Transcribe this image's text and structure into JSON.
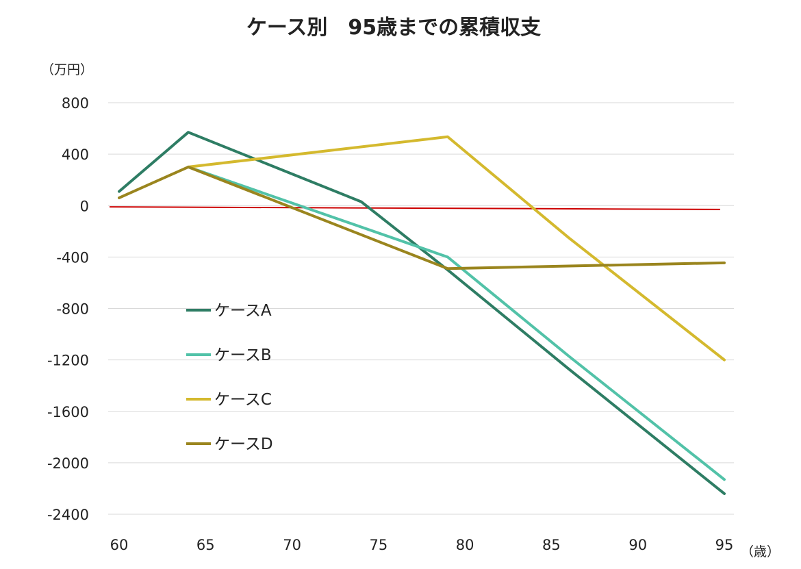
{
  "chart_data": {
    "type": "line",
    "title": "ケース別　95歳までの累積収支",
    "ylabel": "（万円）",
    "xlabel": "（歳）",
    "x": [
      60,
      64,
      74,
      79,
      86,
      95
    ],
    "xticks": [
      60,
      65,
      70,
      75,
      80,
      85,
      90,
      95
    ],
    "yticks": [
      800,
      400,
      0,
      -400,
      -800,
      -1200,
      -1600,
      -2000,
      -2400
    ],
    "ylim": [
      -2400,
      800
    ],
    "xlim": [
      60,
      95
    ],
    "grid": true,
    "legend": "left",
    "reference_line": {
      "x": [
        60,
        95
      ],
      "y": [
        -10,
        -30
      ],
      "color": "#cc0000"
    },
    "series": [
      {
        "name": "ケースA",
        "color": "#2e7d64",
        "x": [
          60,
          64,
          74,
          79,
          86,
          95
        ],
        "y": [
          110,
          570,
          30,
          -500,
          -1270,
          -2240
        ]
      },
      {
        "name": "ケースB",
        "color": "#52c2a8",
        "x": [
          64,
          79,
          86,
          95
        ],
        "y": [
          300,
          -400,
          -1170,
          -2130
        ]
      },
      {
        "name": "ケースC",
        "color": "#d4b92e",
        "x": [
          64,
          79,
          86,
          95
        ],
        "y": [
          300,
          535,
          -250,
          -1200
        ]
      },
      {
        "name": "ケースD",
        "color": "#9a851e",
        "x": [
          60,
          64,
          79,
          86,
          95
        ],
        "y": [
          60,
          300,
          -490,
          -470,
          -445
        ]
      }
    ]
  }
}
